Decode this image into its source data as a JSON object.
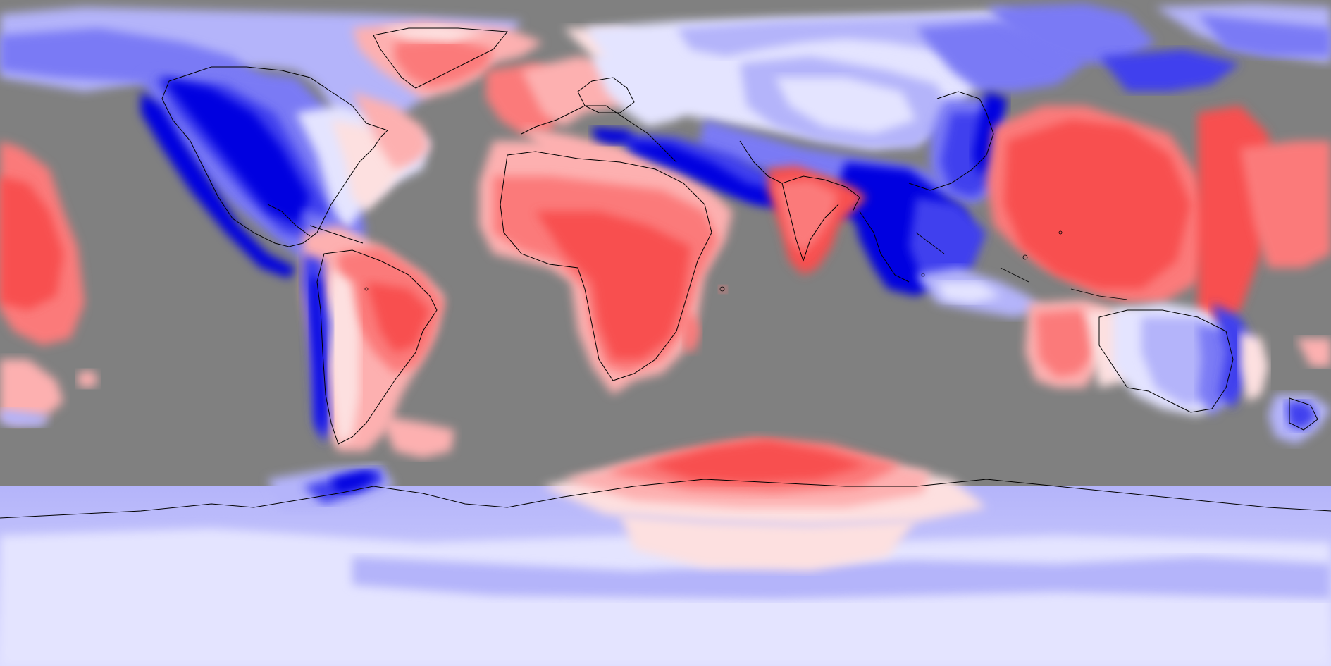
{
  "map": {
    "projection": "equirectangular",
    "background_color": "#808080",
    "outline_color": "#000000",
    "colors": {
      "red_strong": "#f85050",
      "red": "#fb7a7a",
      "red_light": "#fdb0b0",
      "pink": "#fde0e0",
      "white": "#ffffff",
      "blue_pale": "#e4e4ff",
      "blue_light": "#b4b4fa",
      "blue": "#7a7af5",
      "blue_mid": "#4040ee",
      "blue_deep": "#0000e0"
    },
    "visible_regions": [
      "north-america",
      "greenland",
      "south-america",
      "europe",
      "africa",
      "asia",
      "india",
      "australia",
      "antarctica",
      "pacific-islands",
      "new-zealand"
    ]
  }
}
